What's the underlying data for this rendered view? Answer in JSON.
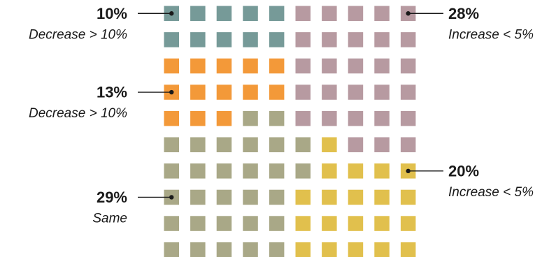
{
  "chart_data": {
    "type": "waffle",
    "rows": 10,
    "columns": 10,
    "cells": [
      [
        "decrease_gt_10_teal",
        "decrease_gt_10_teal",
        "decrease_gt_10_teal",
        "decrease_gt_10_teal",
        "decrease_gt_10_teal",
        "increase_lt_5_mauve",
        "increase_lt_5_mauve",
        "increase_lt_5_mauve",
        "increase_lt_5_mauve",
        "increase_lt_5_mauve"
      ],
      [
        "decrease_gt_10_teal",
        "decrease_gt_10_teal",
        "decrease_gt_10_teal",
        "decrease_gt_10_teal",
        "decrease_gt_10_teal",
        "increase_lt_5_mauve",
        "increase_lt_5_mauve",
        "increase_lt_5_mauve",
        "increase_lt_5_mauve",
        "increase_lt_5_mauve"
      ],
      [
        "decrease_gt_10_orange",
        "decrease_gt_10_orange",
        "decrease_gt_10_orange",
        "decrease_gt_10_orange",
        "decrease_gt_10_orange",
        "increase_lt_5_mauve",
        "increase_lt_5_mauve",
        "increase_lt_5_mauve",
        "increase_lt_5_mauve",
        "increase_lt_5_mauve"
      ],
      [
        "decrease_gt_10_orange",
        "decrease_gt_10_orange",
        "decrease_gt_10_orange",
        "decrease_gt_10_orange",
        "decrease_gt_10_orange",
        "increase_lt_5_mauve",
        "increase_lt_5_mauve",
        "increase_lt_5_mauve",
        "increase_lt_5_mauve",
        "increase_lt_5_mauve"
      ],
      [
        "decrease_gt_10_orange",
        "decrease_gt_10_orange",
        "decrease_gt_10_orange",
        "same",
        "same",
        "increase_lt_5_mauve",
        "increase_lt_5_mauve",
        "increase_lt_5_mauve",
        "increase_lt_5_mauve",
        "increase_lt_5_mauve"
      ],
      [
        "same",
        "same",
        "same",
        "same",
        "same",
        "same",
        "increase_lt_5_yellow",
        "increase_lt_5_mauve",
        "increase_lt_5_mauve",
        "increase_lt_5_mauve"
      ],
      [
        "same",
        "same",
        "same",
        "same",
        "same",
        "same",
        "increase_lt_5_yellow",
        "increase_lt_5_yellow",
        "increase_lt_5_yellow",
        "increase_lt_5_yellow"
      ],
      [
        "same",
        "same",
        "same",
        "same",
        "same",
        "increase_lt_5_yellow",
        "increase_lt_5_yellow",
        "increase_lt_5_yellow",
        "increase_lt_5_yellow",
        "increase_lt_5_yellow"
      ],
      [
        "same",
        "same",
        "same",
        "same",
        "same",
        "increase_lt_5_yellow",
        "increase_lt_5_yellow",
        "increase_lt_5_yellow",
        "increase_lt_5_yellow",
        "increase_lt_5_yellow"
      ],
      [
        "same",
        "same",
        "same",
        "same",
        "same",
        "increase_lt_5_yellow",
        "increase_lt_5_yellow",
        "increase_lt_5_yellow",
        "increase_lt_5_yellow",
        "increase_lt_5_yellow"
      ]
    ],
    "categories": [
      {
        "key": "decrease_gt_10_teal",
        "percent_label": "10%",
        "description": "Decrease > 10%",
        "value": 10,
        "color": "#769a98"
      },
      {
        "key": "decrease_gt_10_orange",
        "percent_label": "13%",
        "description": "Decrease > 10%",
        "value": 13,
        "color": "#f39939"
      },
      {
        "key": "same",
        "percent_label": "29%",
        "description": "Same",
        "value": 29,
        "color": "#a9a887"
      },
      {
        "key": "increase_lt_5_mauve",
        "percent_label": "28%",
        "description": "Increase < 5%",
        "value": 28,
        "color": "#b79aa1"
      },
      {
        "key": "increase_lt_5_yellow",
        "percent_label": "20%",
        "description": "Increase < 5%",
        "value": 20,
        "color": "#e1c04d"
      }
    ],
    "annotations": [
      {
        "category": "decrease_gt_10_teal",
        "side": "left",
        "anchor_row": 0,
        "anchor_col": 0
      },
      {
        "category": "decrease_gt_10_orange",
        "side": "left",
        "anchor_row": 3,
        "anchor_col": 0
      },
      {
        "category": "same",
        "side": "left",
        "anchor_row": 7,
        "anchor_col": 0
      },
      {
        "category": "increase_lt_5_mauve",
        "side": "right",
        "anchor_row": 0,
        "anchor_col": 9
      },
      {
        "category": "increase_lt_5_yellow",
        "side": "right",
        "anchor_row": 6,
        "anchor_col": 9
      }
    ]
  }
}
